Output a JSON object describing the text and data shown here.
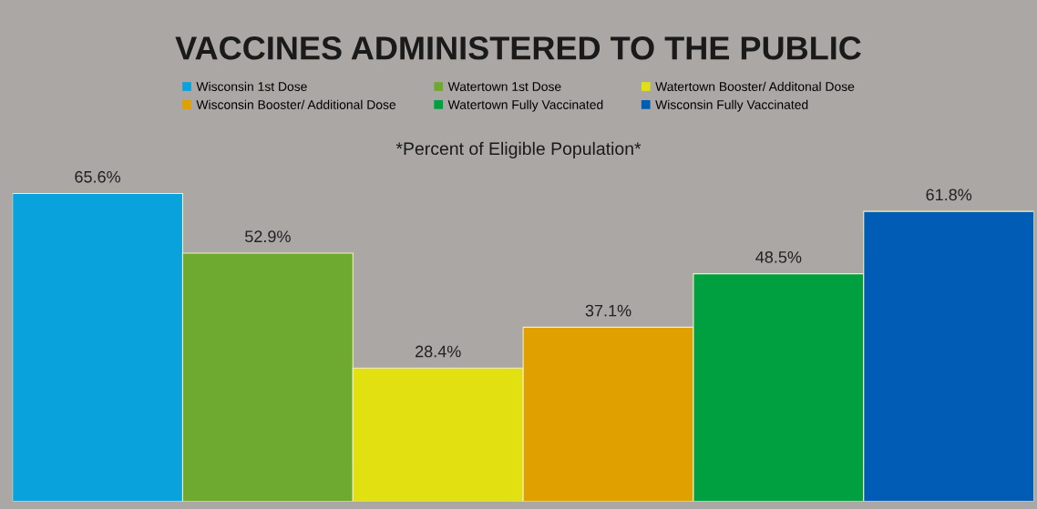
{
  "chart_data": {
    "type": "bar",
    "title": "VACCINES ADMINISTERED TO THE PUBLIC",
    "annotations": [
      "*Percent of Eligible Population*"
    ],
    "categories": [
      null
    ],
    "series": [
      {
        "name": "Wisconsin 1st Dose",
        "color": "#0aa2dc",
        "values": [
          65.6
        ],
        "value_labels": [
          "65.6%"
        ]
      },
      {
        "name": "Watertown 1st Dose",
        "color": "#6eaa30",
        "values": [
          52.9
        ],
        "value_labels": [
          "52.9%"
        ]
      },
      {
        "name": "Watertown Booster/ Additonal Dose",
        "color": "#e2e010",
        "values": [
          28.4
        ],
        "value_labels": [
          "28.4%"
        ]
      },
      {
        "name": "Wisconsin Booster/ Additional Dose",
        "color": "#e0a000",
        "values": [
          37.1
        ],
        "value_labels": [
          "37.1%"
        ]
      },
      {
        "name": "Watertown Fully Vaccinated",
        "color": "#00a040",
        "values": [
          48.5
        ],
        "value_labels": [
          "48.5%"
        ]
      },
      {
        "name": "Wisconsin Fully Vaccinated",
        "color": "#005cb4",
        "values": [
          61.8
        ],
        "value_labels": [
          "61.8%"
        ]
      }
    ],
    "tick_labels": false,
    "grid": false,
    "legend": "top"
  }
}
